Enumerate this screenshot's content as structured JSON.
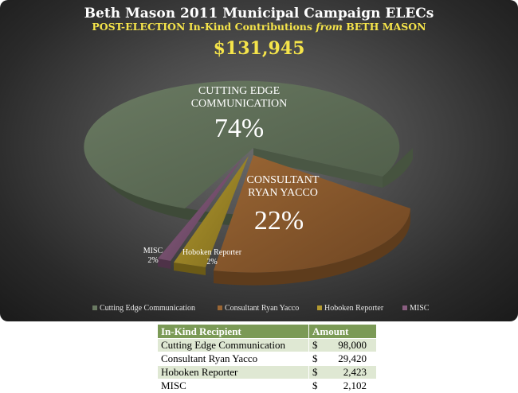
{
  "chart_data": {
    "type": "pie",
    "title": "Beth Mason 2011 Municipal Campaign ELECs",
    "subtitle_prefix": "POST-ELECTION In-Kind Contributions",
    "subtitle_from": "from",
    "subtitle_suffix": "BETH MASON",
    "total": "$131,945",
    "slices": [
      {
        "name": "Cutting Edge Communication",
        "label_lines": [
          "CUTTING EDGE",
          "COMMUNICATION"
        ],
        "percent_label": "74%",
        "value": 98000,
        "color": "#5c6b55"
      },
      {
        "name": "Consultant Ryan Yacco",
        "label_lines": [
          "CONSULTANT",
          "RYAN YACCO"
        ],
        "percent_label": "22%",
        "value": 29420,
        "color": "#8a5a2e"
      },
      {
        "name": "Hoboken Reporter",
        "label_lines": [
          "Hoboken Reporter"
        ],
        "percent_label": "2%",
        "value": 2423,
        "color": "#a08a2a"
      },
      {
        "name": "MISC",
        "label_lines": [
          "MISC"
        ],
        "percent_label": "2%",
        "value": 2102,
        "color": "#7a5070"
      }
    ],
    "legend_position": "bottom",
    "legend": [
      "Cutting Edge Communication",
      "Consultant Ryan Yacco",
      "Hoboken Reporter",
      "MISC"
    ]
  },
  "table": {
    "headers": [
      "In-Kind Recipient",
      "Amount"
    ],
    "rows": [
      {
        "recipient": "Cutting Edge Communication",
        "currency": "$",
        "amount": "98,000"
      },
      {
        "recipient": "Consultant Ryan Yacco",
        "currency": "$",
        "amount": "29,420"
      },
      {
        "recipient": "Hoboken Reporter",
        "currency": "$",
        "amount": "2,423"
      },
      {
        "recipient": "MISC",
        "currency": "$",
        "amount": "2,102"
      }
    ]
  }
}
